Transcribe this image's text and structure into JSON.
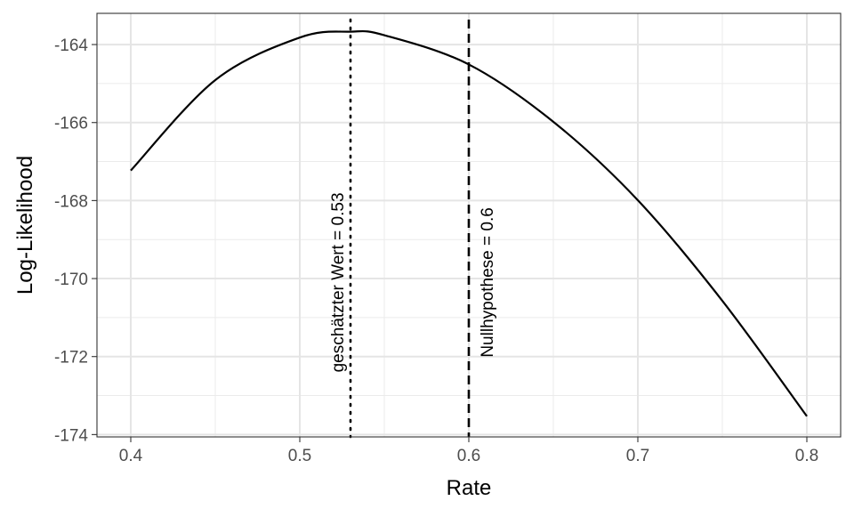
{
  "chart_data": {
    "type": "line",
    "title": "",
    "xlabel": "Rate",
    "ylabel": "Log-Likelihood",
    "xlim": [
      0.38,
      0.82
    ],
    "ylim": [
      -174.06,
      -163.2
    ],
    "xticks": [
      0.4,
      0.5,
      0.6,
      0.7,
      0.8
    ],
    "xtick_labels": [
      "0.4",
      "0.5",
      "0.6",
      "0.7",
      "0.8"
    ],
    "yticks": [
      -174,
      -172,
      -170,
      -168,
      -166,
      -164
    ],
    "ytick_labels": [
      "-174",
      "-172",
      "-170",
      "-168",
      "-166",
      "-164"
    ],
    "grid": true,
    "series": [
      {
        "name": "log-likelihood",
        "x": [
          0.4,
          0.45,
          0.5,
          0.53,
          0.55,
          0.6,
          0.65,
          0.7,
          0.75,
          0.8
        ],
        "y": [
          -167.23,
          -164.91,
          -163.82,
          -163.67,
          -163.76,
          -164.51,
          -165.98,
          -167.99,
          -170.57,
          -173.53
        ]
      }
    ],
    "vlines": [
      {
        "x": 0.53,
        "style": "dotted",
        "label": "geschätzter Wert = 0.53",
        "label_y": -170.1
      },
      {
        "x": 0.6,
        "style": "dashed",
        "label": "Nullhypothese = 0.6",
        "label_y": -170.1
      }
    ]
  }
}
